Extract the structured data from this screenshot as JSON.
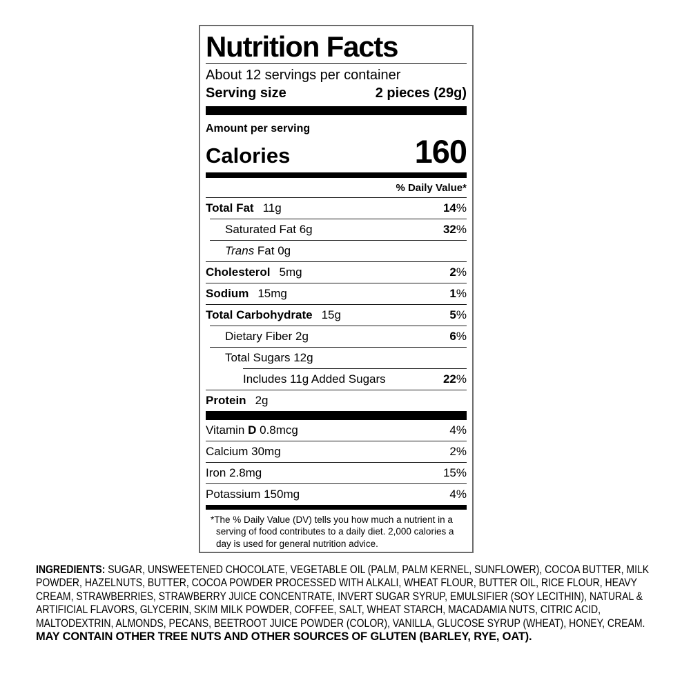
{
  "panel": {
    "title": "Nutrition Facts",
    "servings": "About 12 servings per container",
    "serving_size_label": "Serving size",
    "serving_size_value": "2 pieces (29g)",
    "amount_per_serving": "Amount per serving",
    "calories_label": "Calories",
    "calories_value": "160",
    "dv_header": "% Daily Value*",
    "nutrients": [
      {
        "b": "Total Fat",
        "amount": "11g",
        "dvn": "14",
        "dvs": "%",
        "dvBold": true,
        "indent": 0,
        "sep": "full",
        "gap": true
      },
      {
        "pre": "Saturated Fat 6g",
        "dvn": "32",
        "dvs": "%",
        "dvBold": true,
        "indent": 1,
        "sep": "sub"
      },
      {
        "i": "Trans",
        "post": " Fat 0g",
        "indent": 1,
        "sep": "sub"
      },
      {
        "b": "Cholesterol",
        "amount": "5mg",
        "dvn": "2",
        "dvs": "%",
        "dvBold": true,
        "indent": 0,
        "sep": "full",
        "gap": true
      },
      {
        "b": "Sodium",
        "amount": "15mg",
        "dvn": "1",
        "dvs": "%",
        "dvBold": true,
        "indent": 0,
        "sep": "full",
        "gap": true
      },
      {
        "b": "Total Carbohydrate",
        "amount": "15g",
        "dvn": "5",
        "dvs": "%",
        "dvBold": true,
        "indent": 0,
        "sep": "full",
        "gap": true
      },
      {
        "pre": "Dietary Fiber 2g",
        "dvn": "6",
        "dvs": "%",
        "dvBold": true,
        "indent": 1,
        "sep": "sub"
      },
      {
        "pre": "Total Sugars 12g",
        "indent": 1,
        "sep": "sub"
      },
      {
        "pre": "Includes 11g Added Sugars",
        "dvn": "22",
        "dvs": "%",
        "dvBold": true,
        "indent": 2,
        "sep": "sub2"
      },
      {
        "b": "Protein",
        "amount": "2g",
        "indent": 0,
        "sep": "full",
        "gap": true
      }
    ],
    "vitamins": [
      {
        "pre": "Vitamin ",
        "b": "D",
        "post": " 0.8mcg",
        "dvn": "4",
        "dvs": "%",
        "indent": 0,
        "sep": "none"
      },
      {
        "pre": "Calcium 30mg",
        "dvn": "2",
        "dvs": "%",
        "indent": 0,
        "sep": "full"
      },
      {
        "pre": "Iron 2.8mg",
        "dvn": "15",
        "dvs": "%",
        "indent": 0,
        "sep": "full"
      },
      {
        "pre": "Potassium 150mg",
        "dvn": "4",
        "dvs": "%",
        "indent": 0,
        "sep": "full"
      }
    ],
    "footnote": "*The % Daily Value (DV) tells you how much a nutrient in a serving of food contributes to a daily diet. 2,000 calories a day is used for general nutrition advice."
  },
  "ingredients": {
    "heading": "INGREDIENTS:",
    "list": "SUGAR, UNSWEETENED CHOCOLATE, VEGETABLE OIL (PALM, PALM KERNEL, SUNFLOWER), COCOA BUTTER, MILK POWDER, HAZELNUTS, BUTTER, COCOA POWDER PROCESSED WITH ALKALI, WHEAT FLOUR, BUTTER OIL, RICE FLOUR, HEAVY CREAM, STRAWBERRIES, STRAWBERRY JUICE CONCENTRATE, INVERT SUGAR SYRUP, EMULSIFIER (SOY LECITHIN), NATURAL & ARTIFICIAL FLAVORS, GLYCERIN, SKIM MILK POWDER, COFFEE, SALT, WHEAT STARCH, MACADAMIA NUTS, CITRIC ACID, MALTODEXTRIN, ALMONDS, PECANS, BEETROOT JUICE POWDER (COLOR), VANILLA, GLUCOSE SYRUP (WHEAT), HONEY, CREAM.",
    "allergen": "MAY CONTAIN OTHER TREE NUTS AND OTHER SOURCES OF GLUTEN (BARLEY, RYE, OAT)."
  },
  "colors": {
    "text": "#000000",
    "bars": "#000000",
    "panel_border": "#6b6b6b",
    "background": "#ffffff"
  }
}
